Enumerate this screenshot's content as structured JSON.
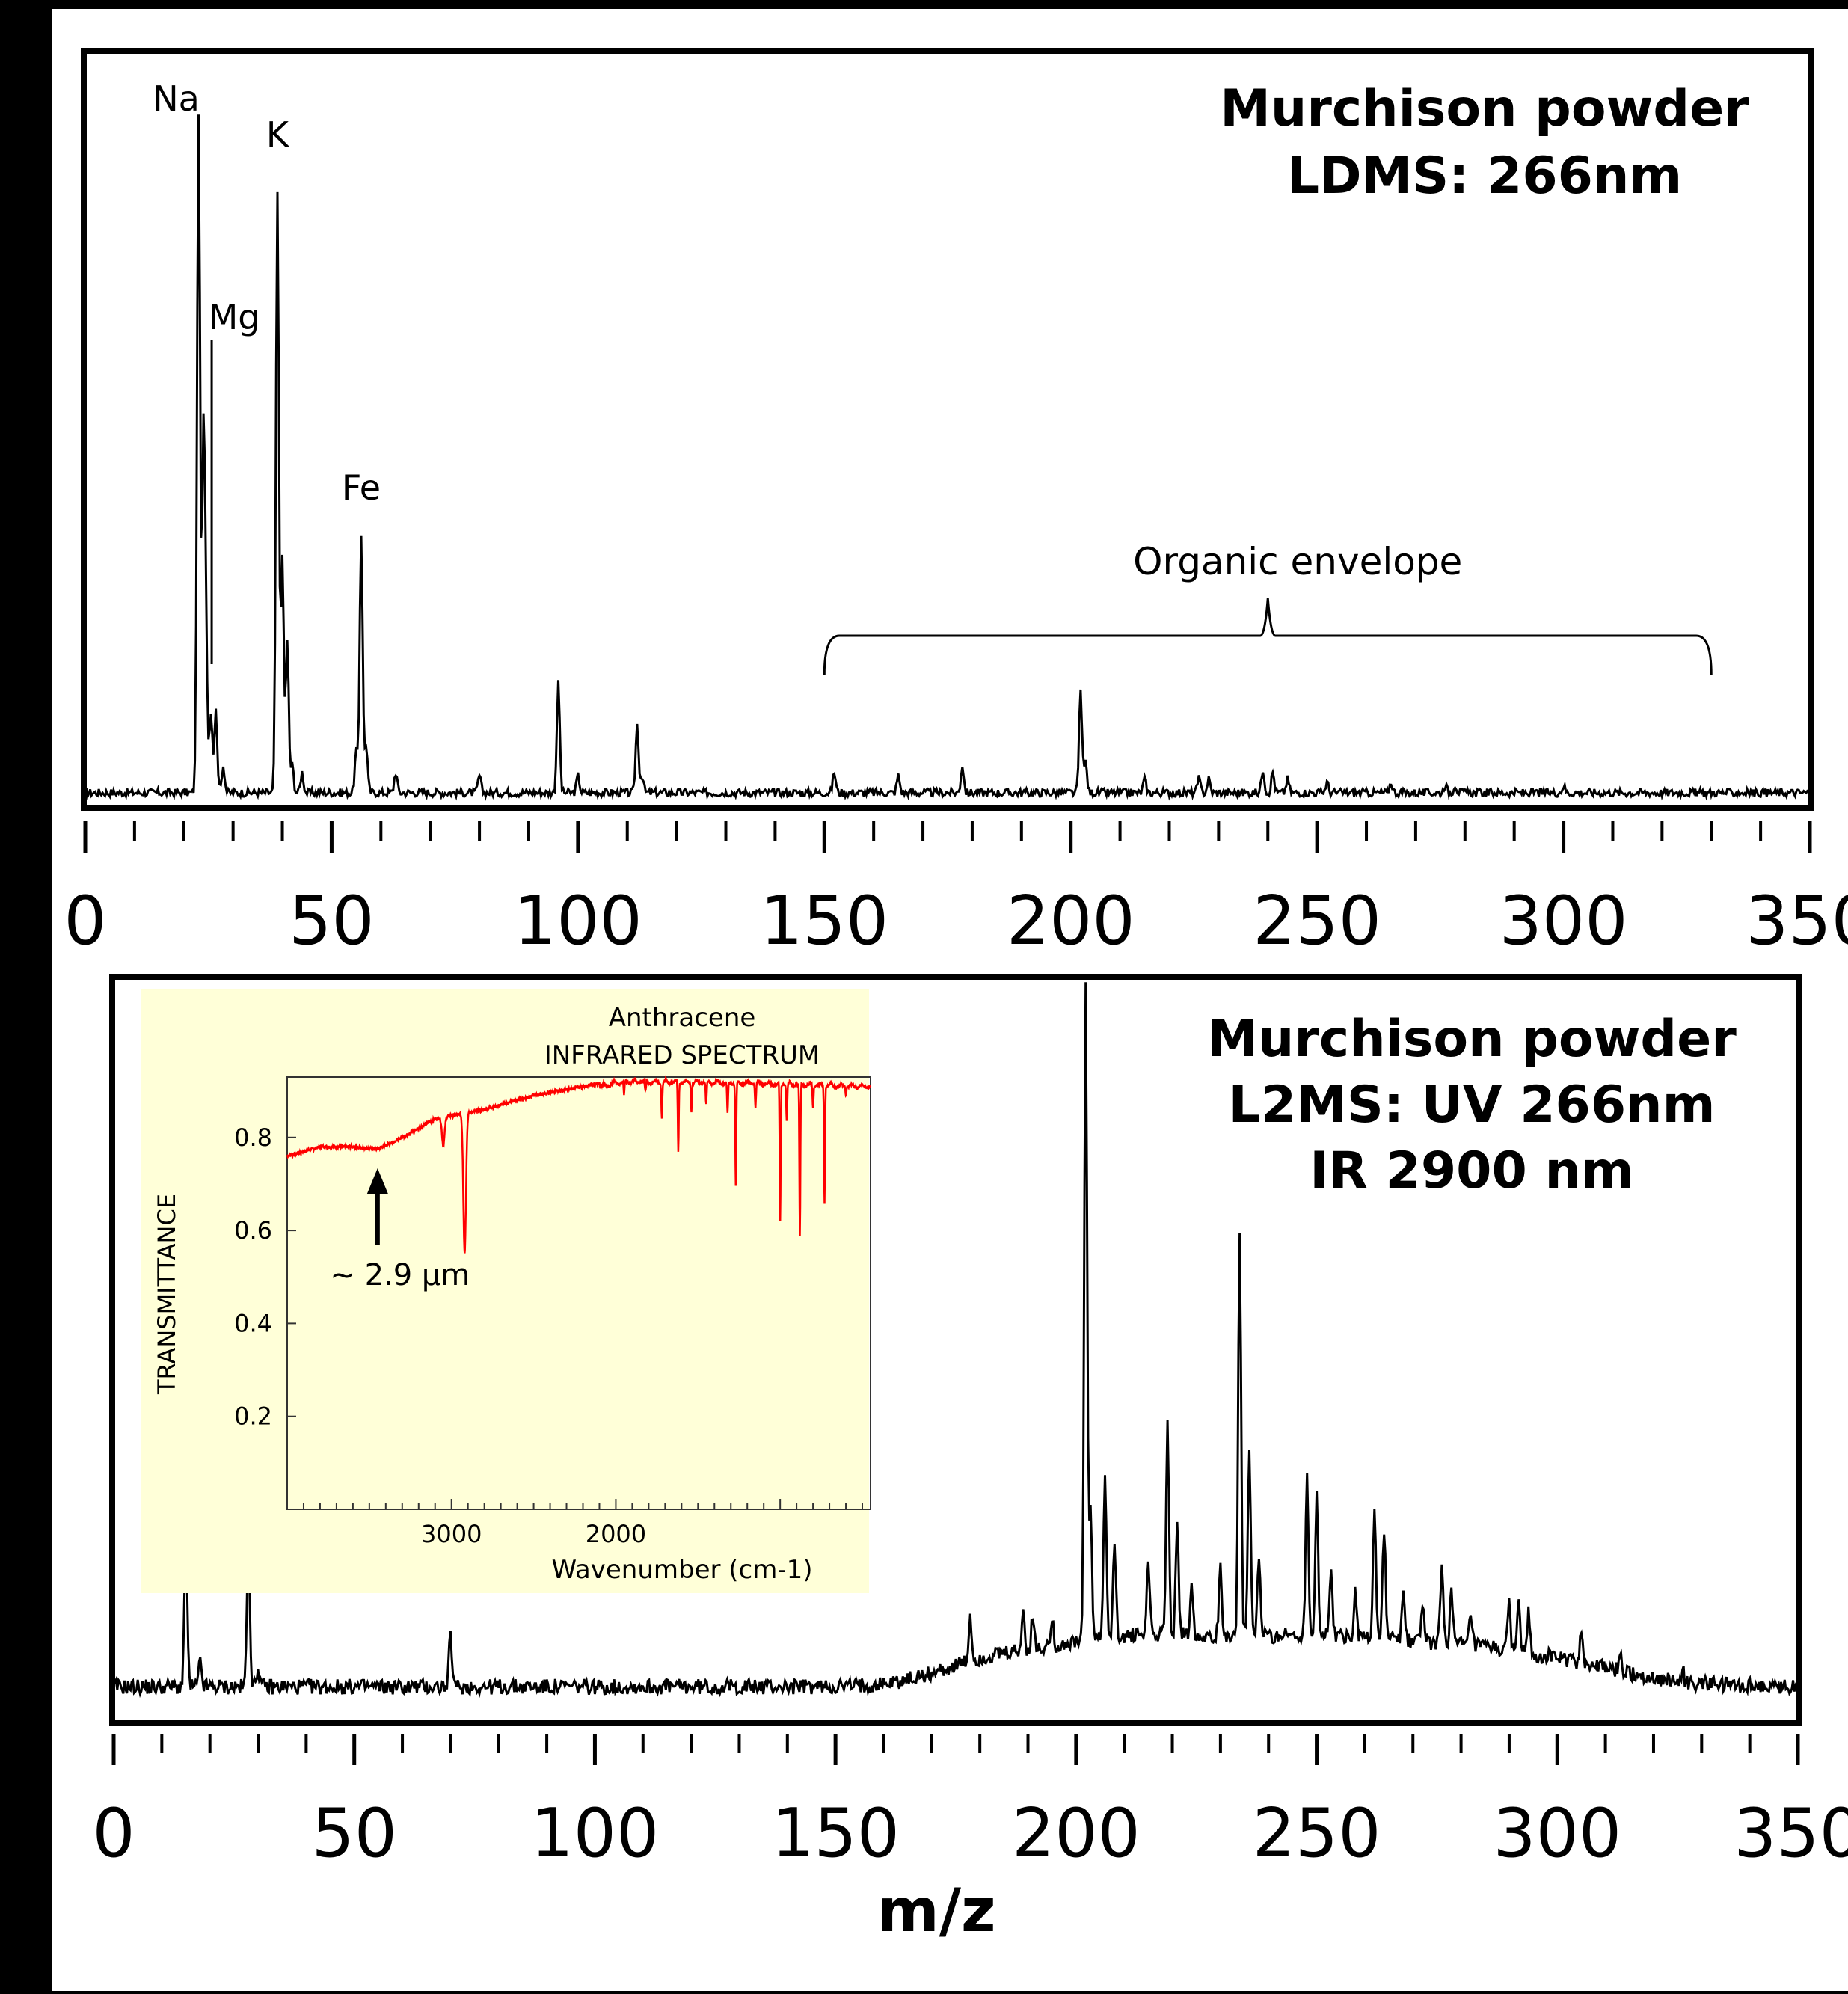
{
  "chart_data": [
    {
      "type": "line",
      "title_lines": [
        "Murchison powder",
        "LDMS: 266nm"
      ],
      "xlabel": "",
      "ylabel": "",
      "xlim": [
        0,
        350
      ],
      "x_ticks": [
        0,
        50,
        100,
        150,
        200,
        250,
        300,
        350
      ],
      "annotations": {
        "na": "Na",
        "mg": "Mg",
        "k": "K",
        "fe": "Fe",
        "organic": "Organic envelope"
      },
      "organic_range": [
        150,
        330
      ],
      "label_mz": {
        "na": 23,
        "mg": 29,
        "k": 39,
        "fe": 56
      },
      "baseline": 0.02,
      "noise": 0.006,
      "peaks": [
        [
          23,
          1.0
        ],
        [
          24,
          0.5
        ],
        [
          24.5,
          0.2
        ],
        [
          25.5,
          0.12
        ],
        [
          26.5,
          0.12
        ],
        [
          28,
          0.04
        ],
        [
          39,
          0.88
        ],
        [
          40,
          0.34
        ],
        [
          41,
          0.22
        ],
        [
          42,
          0.04
        ],
        [
          44,
          0.03
        ],
        [
          55,
          0.06
        ],
        [
          56,
          0.38
        ],
        [
          57,
          0.07
        ],
        [
          63,
          0.03
        ],
        [
          80,
          0.025
        ],
        [
          96,
          0.16
        ],
        [
          100,
          0.025
        ],
        [
          112,
          0.1
        ],
        [
          113,
          0.025
        ],
        [
          152,
          0.03
        ],
        [
          165,
          0.025
        ],
        [
          178,
          0.04
        ],
        [
          202,
          0.15
        ],
        [
          203,
          0.045
        ],
        [
          215,
          0.02
        ],
        [
          226,
          0.02
        ],
        [
          228,
          0.02
        ],
        [
          239,
          0.035
        ],
        [
          241,
          0.03
        ],
        [
          244,
          0.02
        ],
        [
          252,
          0.015
        ],
        [
          265,
          0.015
        ],
        [
          276,
          0.012
        ],
        [
          278,
          0.012
        ],
        [
          300,
          0.01
        ]
      ]
    },
    {
      "type": "line",
      "title_lines": [
        "Murchison powder",
        "L2MS: UV 266nm",
        "IR 2900 nm"
      ],
      "xlabel": "m/z",
      "ylabel": "",
      "xlim": [
        0,
        350
      ],
      "x_ticks": [
        0,
        50,
        100,
        150,
        200,
        250,
        300,
        350
      ],
      "baseline": 0.04,
      "noise": 0.012,
      "humps": [
        [
          180,
          0.02,
          10
        ],
        [
          205,
          0.05,
          18
        ],
        [
          240,
          0.06,
          25
        ],
        [
          275,
          0.04,
          22
        ],
        [
          300,
          0.02,
          15
        ]
      ],
      "peaks": [
        [
          15,
          0.22
        ],
        [
          18,
          0.04
        ],
        [
          28,
          0.22
        ],
        [
          30,
          0.03
        ],
        [
          70,
          0.08
        ],
        [
          178,
          0.07
        ],
        [
          189,
          0.06
        ],
        [
          191,
          0.05
        ],
        [
          195,
          0.05
        ],
        [
          202,
          1.0
        ],
        [
          203,
          0.2
        ],
        [
          206,
          0.25
        ],
        [
          208,
          0.14
        ],
        [
          215,
          0.12
        ],
        [
          219,
          0.32
        ],
        [
          221,
          0.18
        ],
        [
          224,
          0.08
        ],
        [
          230,
          0.1
        ],
        [
          234,
          0.62
        ],
        [
          236,
          0.28
        ],
        [
          238,
          0.12
        ],
        [
          248,
          0.25
        ],
        [
          250,
          0.22
        ],
        [
          253,
          0.1
        ],
        [
          258,
          0.07
        ],
        [
          262,
          0.2
        ],
        [
          264,
          0.17
        ],
        [
          268,
          0.07
        ],
        [
          272,
          0.06
        ],
        [
          276,
          0.12
        ],
        [
          278,
          0.09
        ],
        [
          282,
          0.05
        ],
        [
          290,
          0.07
        ],
        [
          292,
          0.08
        ],
        [
          294,
          0.06
        ],
        [
          305,
          0.05
        ],
        [
          313,
          0.03
        ],
        [
          326,
          0.02
        ]
      ]
    },
    {
      "type": "line",
      "title_lines": [
        "Anthracene",
        "INFRARED SPECTRUM"
      ],
      "xlabel": "Wavenumber (cm-1)",
      "ylabel": "TRANSMITTANCE",
      "xlim": [
        4000,
        450
      ],
      "ylim": [
        0,
        0.93
      ],
      "x_ticks": [
        3000,
        2000
      ],
      "y_ticks": [
        0.8,
        0.6,
        0.4,
        0.2
      ],
      "annotation": "~ 2.9 µm",
      "annotation_x": 3450,
      "series_color": "#ff0000",
      "base_curve": [
        [
          4000,
          0.76
        ],
        [
          3800,
          0.78
        ],
        [
          3600,
          0.78
        ],
        [
          3450,
          0.775
        ],
        [
          3300,
          0.8
        ],
        [
          3100,
          0.84
        ],
        [
          2800,
          0.86
        ],
        [
          2500,
          0.89
        ],
        [
          2200,
          0.91
        ],
        [
          1950,
          0.925
        ],
        [
          1600,
          0.925
        ],
        [
          1000,
          0.92
        ],
        [
          450,
          0.915
        ]
      ],
      "dips": [
        [
          3050,
          0.52
        ],
        [
          2920,
          0.06
        ],
        [
          1950,
          0.03
        ],
        [
          1820,
          0.025
        ],
        [
          1720,
          0.08
        ],
        [
          1620,
          0.15
        ],
        [
          1540,
          0.06
        ],
        [
          1450,
          0.05
        ],
        [
          1320,
          0.07
        ],
        [
          1270,
          0.22
        ],
        [
          1150,
          0.05
        ],
        [
          1000,
          0.3
        ],
        [
          960,
          0.08
        ],
        [
          880,
          0.33
        ],
        [
          800,
          0.05
        ],
        [
          730,
          0.25
        ],
        [
          600,
          0.02
        ]
      ]
    }
  ]
}
